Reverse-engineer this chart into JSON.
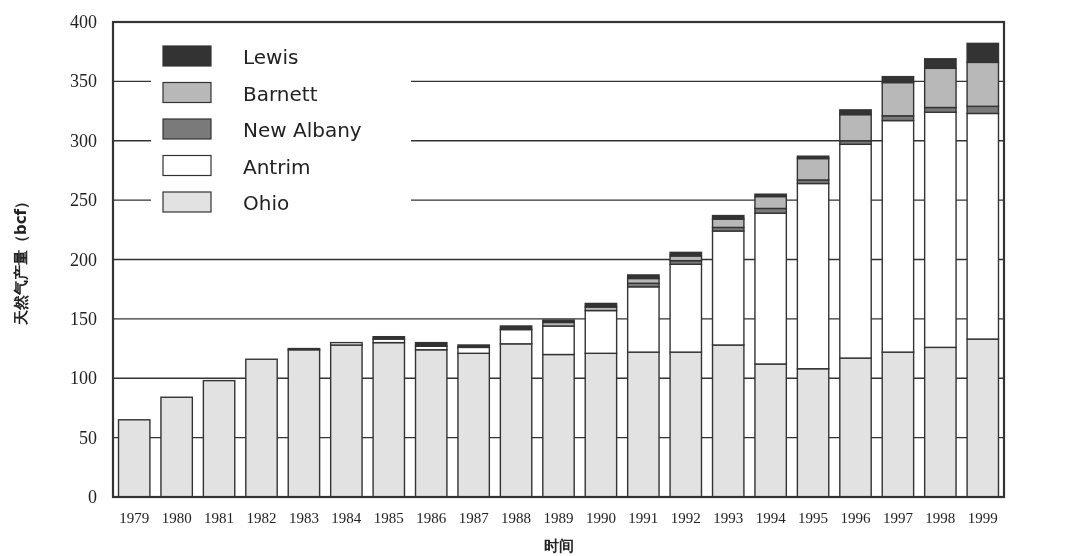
{
  "chart_data": {
    "type": "bar",
    "stacked": true,
    "xlabel": "时间",
    "ylabel": "天然气产量（bcf）",
    "categories": [
      "1979",
      "1980",
      "1981",
      "1982",
      "1983",
      "1984",
      "1985",
      "1986",
      "1987",
      "1988",
      "1989",
      "1990",
      "1991",
      "1992",
      "1993",
      "1994",
      "1995",
      "1996",
      "1997",
      "1998",
      "1999"
    ],
    "series": [
      {
        "name": "Ohio",
        "color": "#e2e2e2",
        "values": [
          65,
          84,
          98,
          116,
          124,
          128,
          130,
          124,
          121,
          129,
          120,
          121,
          122,
          122,
          128,
          112,
          108,
          117,
          122,
          126,
          133
        ]
      },
      {
        "name": "Antrim",
        "color": "#ffffff",
        "values": [
          null,
          null,
          null,
          null,
          1,
          2,
          3,
          3,
          5,
          12,
          24,
          36,
          55,
          74,
          96,
          127,
          156,
          180,
          195,
          198,
          190
        ]
      },
      {
        "name": "New Albany",
        "color": "#7a7a7a",
        "values": [
          null,
          null,
          null,
          null,
          null,
          null,
          null,
          null,
          null,
          null,
          null,
          null,
          3,
          3,
          3,
          4,
          3,
          3,
          4,
          4,
          6
        ]
      },
      {
        "name": "Barnett",
        "color": "#b8b8b8",
        "values": [
          null,
          null,
          null,
          null,
          null,
          null,
          null,
          null,
          null,
          null,
          3,
          3,
          4,
          4,
          7,
          10,
          18,
          22,
          28,
          33,
          37
        ]
      },
      {
        "name": "Lewis",
        "color": "#333333",
        "values": [
          null,
          null,
          null,
          null,
          null,
          null,
          2,
          3,
          2,
          3,
          2,
          3,
          3,
          3,
          3,
          2,
          2,
          4,
          5,
          8,
          16
        ]
      }
    ],
    "ylim": [
      0,
      400
    ],
    "yticks": [
      0,
      50,
      100,
      150,
      200,
      250,
      300,
      350,
      400
    ],
    "grid": "y",
    "legend": "top left"
  }
}
